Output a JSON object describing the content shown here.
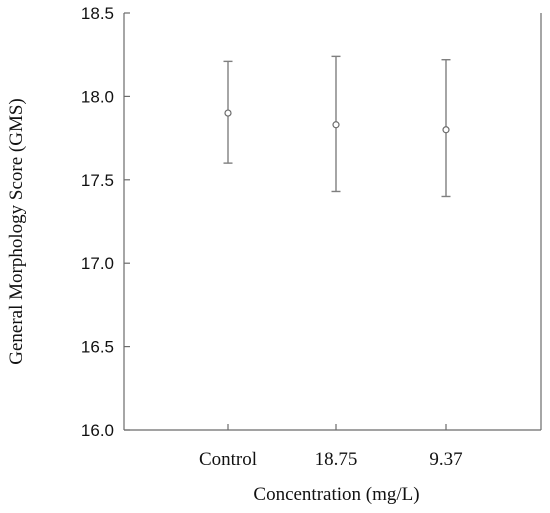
{
  "chart_data": {
    "type": "scatter",
    "xlabel": "Concentration (mg/L)",
    "ylabel": "General Morphology Score (GMS)",
    "categories": [
      "Control",
      "18.75",
      "9.37"
    ],
    "series": [
      {
        "values": [
          17.9,
          17.83,
          17.8
        ],
        "error_low": [
          17.6,
          17.43,
          17.4
        ],
        "error_high": [
          18.21,
          18.24,
          18.22
        ]
      }
    ],
    "ylim": [
      16.0,
      18.5
    ],
    "yticks": [
      "16.0",
      "16.5",
      "17.0",
      "17.5",
      "18.0",
      "18.5"
    ],
    "grid": false,
    "colors": {
      "axis": "#6b6b6b",
      "errorbar": "#7f7f7f",
      "marker_fill": "#ffffff"
    }
  }
}
